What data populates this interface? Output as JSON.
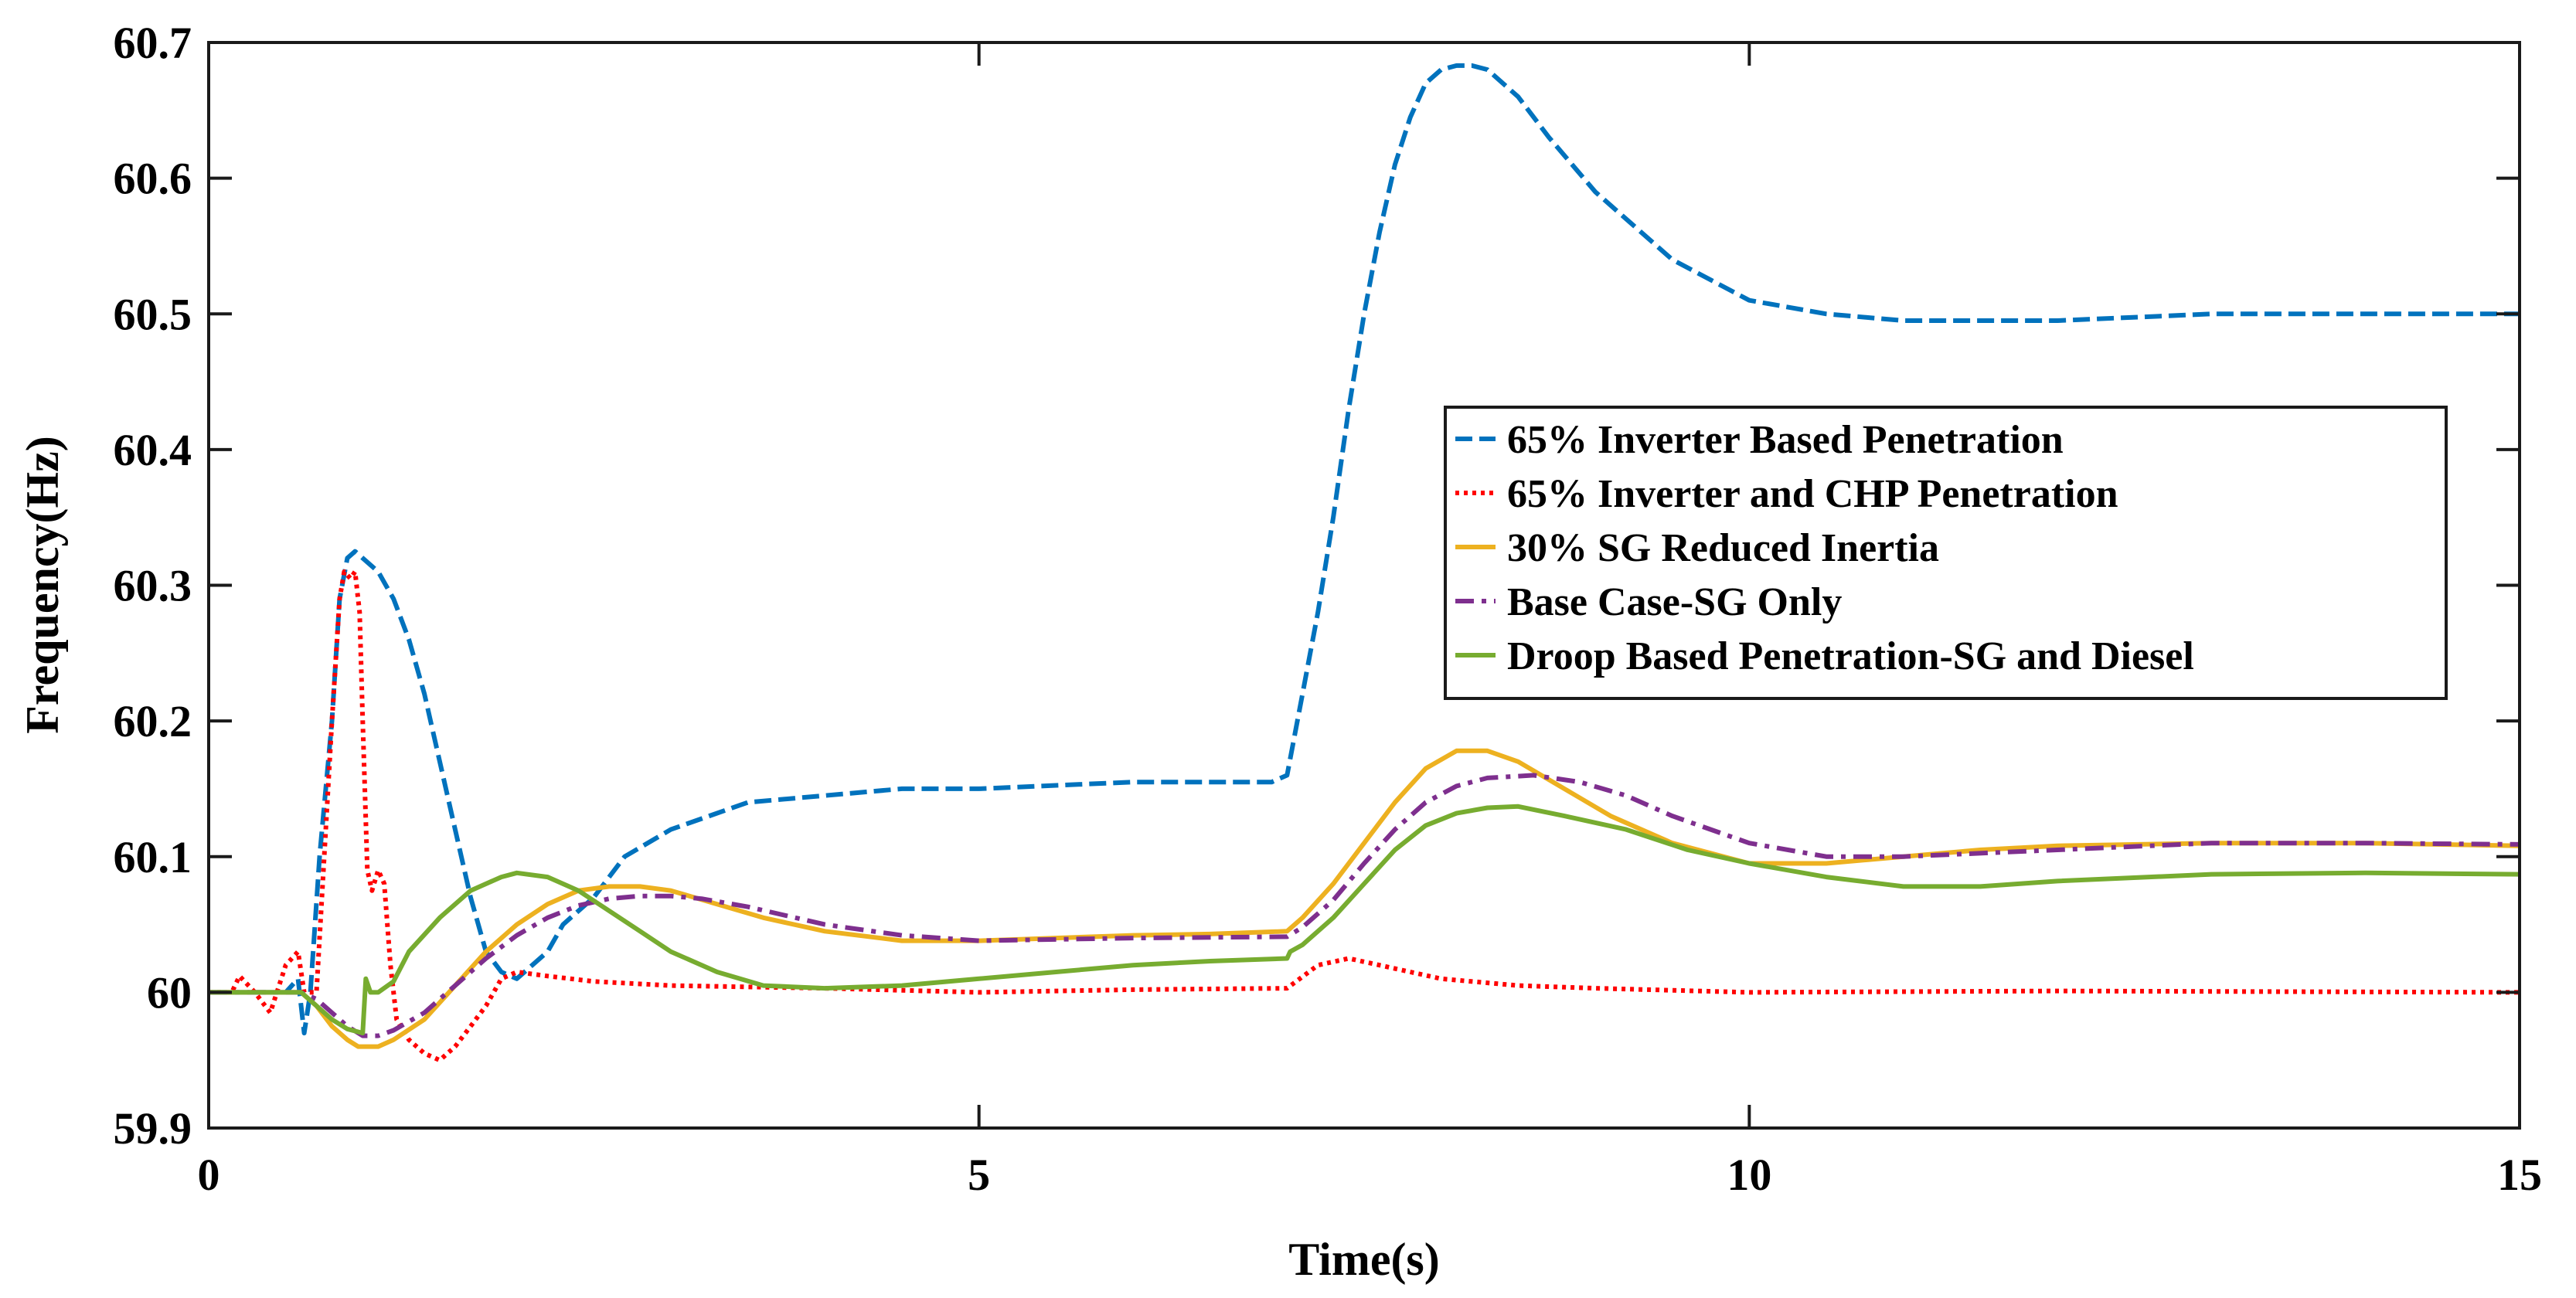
{
  "chart_data": {
    "type": "line",
    "title": "",
    "xlabel": "Time(s)",
    "ylabel": "Frequency(Hz)",
    "xlim": [
      0,
      15
    ],
    "ylim": [
      59.9,
      60.7
    ],
    "xticks": [
      0,
      5,
      10,
      15
    ],
    "xtick_labels": [
      "0",
      "5",
      "10",
      "15"
    ],
    "yticks": [
      59.9,
      60.0,
      60.1,
      60.2,
      60.3,
      60.4,
      60.5,
      60.6,
      60.7
    ],
    "ytick_labels": [
      "59.9",
      "60",
      "60.1",
      "60.2",
      "60.3",
      "60.4",
      "60.5",
      "60.6",
      "60.7"
    ],
    "grid": false,
    "legend_position": "center-right",
    "series": [
      {
        "name": "65% Inverter Based Penetration",
        "color": "#0072BD",
        "style": "dashed",
        "x": [
          0,
          0.5,
          0.58,
          0.62,
          0.66,
          0.72,
          0.8,
          0.85,
          0.9,
          0.95,
          1.0,
          1.1,
          1.2,
          1.3,
          1.4,
          1.5,
          1.6,
          1.7,
          1.8,
          1.9,
          2.0,
          2.1,
          2.2,
          2.3,
          2.5,
          2.7,
          3.0,
          3.5,
          4.0,
          4.5,
          5.0,
          6.0,
          6.9,
          7.0,
          7.05,
          7.1,
          7.2,
          7.3,
          7.4,
          7.5,
          7.6,
          7.7,
          7.8,
          7.9,
          8.0,
          8.1,
          8.2,
          8.3,
          8.5,
          8.7,
          9.0,
          9.5,
          10.0,
          10.5,
          11.0,
          12.0,
          13.0,
          14.0,
          15.0
        ],
        "y": [
          60.0,
          60.0,
          60.01,
          59.97,
          60.0,
          60.1,
          60.2,
          60.29,
          60.32,
          60.325,
          60.32,
          60.31,
          60.29,
          60.26,
          60.22,
          60.17,
          60.12,
          60.07,
          60.03,
          60.015,
          60.01,
          60.02,
          60.03,
          60.05,
          60.07,
          60.1,
          60.12,
          60.14,
          60.145,
          60.15,
          60.15,
          60.155,
          60.155,
          60.16,
          60.19,
          60.22,
          60.28,
          60.35,
          60.43,
          60.5,
          60.56,
          60.61,
          60.645,
          60.67,
          60.68,
          60.683,
          60.683,
          60.68,
          60.66,
          60.63,
          60.59,
          60.54,
          60.51,
          60.5,
          60.495,
          60.495,
          60.5,
          60.5,
          60.5
        ]
      },
      {
        "name": "65% Inverter and CHP Penetration",
        "color": "#FF0000",
        "style": "dotted",
        "x": [
          0,
          0.15,
          0.2,
          0.3,
          0.4,
          0.5,
          0.58,
          0.62,
          0.7,
          0.75,
          0.8,
          0.85,
          0.88,
          0.92,
          0.95,
          0.98,
          1.0,
          1.03,
          1.06,
          1.1,
          1.14,
          1.18,
          1.22,
          1.3,
          1.4,
          1.5,
          1.6,
          1.7,
          1.8,
          1.9,
          2.0,
          2.2,
          2.5,
          3.0,
          4.0,
          5.0,
          6.0,
          7.0,
          7.2,
          7.4,
          7.6,
          7.8,
          8.0,
          8.5,
          9.0,
          10.0,
          12.0,
          15.0
        ],
        "y": [
          60.0,
          60.0,
          60.012,
          60.0,
          59.985,
          60.02,
          60.03,
          60.0,
          60.0,
          60.1,
          60.2,
          60.29,
          60.31,
          60.305,
          60.31,
          60.28,
          60.2,
          60.09,
          60.075,
          60.09,
          60.08,
          60.02,
          59.98,
          59.965,
          59.955,
          59.95,
          59.96,
          59.975,
          59.99,
          60.01,
          60.015,
          60.012,
          60.008,
          60.005,
          60.003,
          60.0,
          60.002,
          60.003,
          60.02,
          60.025,
          60.02,
          60.015,
          60.01,
          60.005,
          60.003,
          60.0,
          60.001,
          60.0
        ]
      },
      {
        "name": "30% SG Reduced Inertia",
        "color": "#EDB120",
        "style": "solid",
        "x": [
          0,
          0.6,
          0.7,
          0.8,
          0.9,
          0.97,
          1.1,
          1.2,
          1.4,
          1.6,
          1.8,
          2.0,
          2.2,
          2.4,
          2.6,
          2.8,
          3.0,
          3.3,
          3.6,
          4.0,
          4.5,
          5.0,
          5.5,
          6.0,
          6.5,
          7.0,
          7.1,
          7.3,
          7.5,
          7.7,
          7.9,
          8.1,
          8.3,
          8.5,
          8.8,
          9.1,
          9.5,
          10.0,
          10.5,
          11.0,
          11.5,
          12.0,
          13.0,
          14.0,
          15.0
        ],
        "y": [
          60.0,
          60.0,
          59.99,
          59.975,
          59.965,
          59.96,
          59.96,
          59.965,
          59.98,
          60.005,
          60.03,
          60.05,
          60.065,
          60.075,
          60.078,
          60.078,
          60.075,
          60.065,
          60.055,
          60.045,
          60.038,
          60.038,
          60.04,
          60.042,
          60.043,
          60.045,
          60.055,
          60.08,
          60.11,
          60.14,
          60.165,
          60.178,
          60.178,
          60.17,
          60.15,
          60.13,
          60.11,
          60.095,
          60.095,
          60.1,
          60.105,
          60.108,
          60.11,
          60.11,
          60.108
        ]
      },
      {
        "name": "Base Case-SG Only",
        "color": "#7E2F8E",
        "style": "dashdot",
        "x": [
          0,
          0.6,
          0.7,
          0.8,
          0.9,
          1.0,
          1.1,
          1.2,
          1.4,
          1.6,
          1.8,
          2.0,
          2.2,
          2.4,
          2.6,
          2.8,
          3.0,
          3.2,
          3.5,
          4.0,
          4.5,
          5.0,
          6.0,
          7.0,
          7.1,
          7.3,
          7.5,
          7.7,
          7.9,
          8.1,
          8.3,
          8.6,
          8.9,
          9.2,
          9.5,
          10.0,
          10.5,
          11.0,
          12.0,
          13.0,
          14.0,
          15.0
        ],
        "y": [
          60.0,
          60.0,
          59.995,
          59.985,
          59.975,
          59.968,
          59.968,
          59.972,
          59.985,
          60.005,
          60.025,
          60.042,
          60.055,
          60.064,
          60.069,
          60.071,
          60.071,
          60.069,
          60.063,
          60.05,
          60.042,
          60.038,
          60.04,
          60.041,
          60.048,
          60.068,
          60.095,
          60.12,
          60.14,
          60.152,
          60.158,
          60.16,
          60.155,
          60.145,
          60.13,
          60.11,
          60.1,
          60.1,
          60.105,
          60.11,
          60.11,
          60.109
        ]
      },
      {
        "name": "Droop Based Penetration-SG and Diesel",
        "color": "#77AC30",
        "style": "solid",
        "x": [
          0,
          0.6,
          0.7,
          0.8,
          0.9,
          1.0,
          1.02,
          1.05,
          1.1,
          1.2,
          1.3,
          1.5,
          1.7,
          1.9,
          2.0,
          2.2,
          2.4,
          2.6,
          2.8,
          3.0,
          3.3,
          3.6,
          4.0,
          4.5,
          5.0,
          5.5,
          6.0,
          6.5,
          7.0,
          7.02,
          7.1,
          7.3,
          7.5,
          7.7,
          7.9,
          8.1,
          8.3,
          8.5,
          8.8,
          9.2,
          9.6,
          10.0,
          10.5,
          11.0,
          11.5,
          12.0,
          13.0,
          14.0,
          15.0
        ],
        "y": [
          60.0,
          60.0,
          59.99,
          59.98,
          59.973,
          59.97,
          60.01,
          60.0,
          60.0,
          60.008,
          60.03,
          60.055,
          60.075,
          60.085,
          60.088,
          60.085,
          60.075,
          60.06,
          60.045,
          60.03,
          60.015,
          60.005,
          60.003,
          60.005,
          60.01,
          60.015,
          60.02,
          60.023,
          60.025,
          60.03,
          60.035,
          60.055,
          60.08,
          60.105,
          60.123,
          60.132,
          60.136,
          60.137,
          60.13,
          60.12,
          60.105,
          60.095,
          60.085,
          60.078,
          60.078,
          60.082,
          60.087,
          60.088,
          60.087
        ]
      }
    ]
  }
}
